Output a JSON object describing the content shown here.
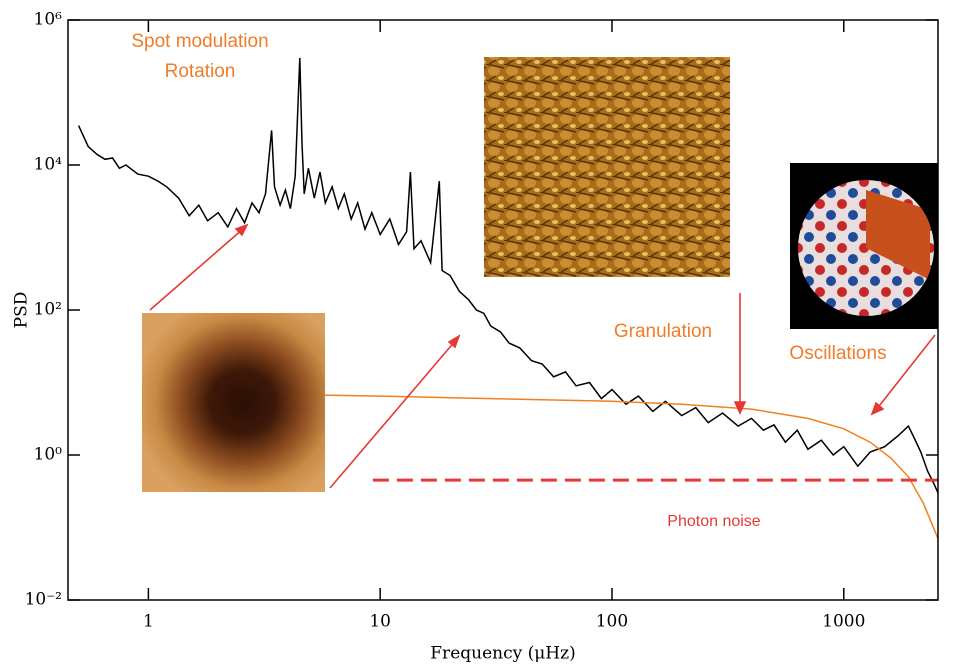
{
  "chart_data": {
    "type": "line",
    "xlabel": "Frequency (μHz)",
    "ylabel": "PSD",
    "xscale": "log",
    "yscale": "log",
    "xlim": [
      0.45,
      2550
    ],
    "ylim": [
      0.01,
      1000000
    ],
    "xticks": [
      1,
      10,
      100,
      1000
    ],
    "yticks": [
      {
        "value": 0.01,
        "label": "10⁻²"
      },
      {
        "value": 1,
        "label": "10⁰"
      },
      {
        "value": 100,
        "label": "10²"
      },
      {
        "value": 10000,
        "label": "10⁴"
      },
      {
        "value": 1000000,
        "label": "10⁶"
      }
    ],
    "series": [
      {
        "color": "#000000",
        "dashed": false,
        "x": [
          0.5,
          0.55,
          0.6,
          0.65,
          0.7,
          0.75,
          0.8,
          0.9,
          1,
          1.1,
          1.2,
          1.35,
          1.5,
          1.65,
          1.8,
          2,
          2.2,
          2.4,
          2.6,
          2.8,
          3,
          3.2,
          3.4,
          3.5,
          3.7,
          3.9,
          4.1,
          4.3,
          4.5,
          4.6,
          4.7,
          4.9,
          5.2,
          5.5,
          5.8,
          6.2,
          6.6,
          7,
          7.5,
          8,
          8.6,
          9.2,
          10,
          11,
          12,
          13,
          13.5,
          14,
          15,
          16.5,
          18,
          18.5,
          20,
          22,
          24,
          26,
          28,
          30,
          33,
          36,
          40,
          45,
          50,
          56,
          63,
          70,
          80,
          90,
          100,
          115,
          130,
          150,
          170,
          200,
          230,
          260,
          300,
          350,
          400,
          450,
          500,
          560,
          630,
          700,
          800,
          900,
          1000,
          1150,
          1300,
          1500,
          1700,
          1900,
          2000,
          2150,
          2300,
          2450,
          2550
        ],
        "values": [
          35000,
          18000,
          14000,
          12000,
          12500,
          9000,
          10000,
          7500,
          7000,
          6000,
          5000,
          3500,
          2000,
          2800,
          1700,
          2200,
          1400,
          2500,
          1600,
          3000,
          2200,
          4000,
          30000,
          5000,
          2800,
          4500,
          2500,
          7000,
          300000,
          20000,
          4000,
          9000,
          3500,
          8000,
          3000,
          5000,
          2500,
          4000,
          1800,
          3000,
          1300,
          2200,
          1100,
          1800,
          800,
          1200,
          8000,
          700,
          900,
          450,
          6000,
          350,
          300,
          180,
          140,
          100,
          90,
          60,
          50,
          35,
          30,
          20,
          18,
          12,
          14,
          9,
          10,
          6,
          8,
          5,
          6.5,
          4,
          5.5,
          3.5,
          4.5,
          2.8,
          3.8,
          2.5,
          3.2,
          2.2,
          2.6,
          1.5,
          2.2,
          1.2,
          1.6,
          1,
          1.3,
          0.7,
          1.1,
          1.3,
          1.8,
          2.5,
          1.8,
          1.1,
          0.6,
          0.4,
          0.3
        ]
      },
      {
        "color": "#f08020",
        "dashed": false,
        "x": [
          3.5,
          10,
          30,
          100,
          200,
          400,
          700,
          1000,
          1300,
          1600,
          1900,
          2200,
          2550
        ],
        "values": [
          6.9,
          6.5,
          6,
          5.5,
          5,
          4.3,
          3.2,
          2.3,
          1.5,
          0.9,
          0.5,
          0.22,
          0.07
        ]
      },
      {
        "color": "#e53935",
        "dashed": true,
        "x": [
          9.3,
          2550
        ],
        "values": [
          0.45,
          0.45
        ]
      }
    ]
  },
  "annotations": [
    "Spot modulation",
    "Rotation",
    "Granulation",
    "Oscillations",
    "Photon noise"
  ]
}
